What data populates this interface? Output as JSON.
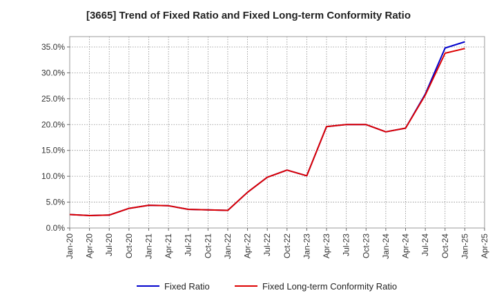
{
  "chart_data": {
    "type": "line",
    "title": "[3665]  Trend of Fixed Ratio and Fixed Long-term Conformity Ratio",
    "xlabel": "",
    "ylabel": "",
    "x": [
      "Jan-20",
      "Apr-20",
      "Jul-20",
      "Oct-20",
      "Jan-21",
      "Apr-21",
      "Jul-21",
      "Oct-21",
      "Jan-22",
      "Apr-22",
      "Jul-22",
      "Oct-22",
      "Jan-23",
      "Apr-23",
      "Jul-23",
      "Oct-23",
      "Jan-24",
      "Apr-24",
      "Jul-24",
      "Oct-24",
      "Jan-25"
    ],
    "x_ticks": [
      "Jan-20",
      "Apr-20",
      "Jul-20",
      "Oct-20",
      "Jan-21",
      "Apr-21",
      "Jul-21",
      "Oct-21",
      "Jan-22",
      "Apr-22",
      "Jul-22",
      "Oct-22",
      "Jan-23",
      "Apr-23",
      "Jul-23",
      "Oct-23",
      "Jan-24",
      "Apr-24",
      "Jul-24",
      "Oct-24",
      "Jan-25",
      "Apr-25"
    ],
    "y_ticks": [
      "0.0%",
      "5.0%",
      "10.0%",
      "15.0%",
      "20.0%",
      "25.0%",
      "30.0%",
      "35.0%"
    ],
    "ylim": [
      0,
      37
    ],
    "grid": true,
    "legend_position": "bottom",
    "series": [
      {
        "name": "Fixed Ratio",
        "color": "#0000cc",
        "values": [
          2.6,
          2.4,
          2.5,
          3.8,
          4.4,
          4.3,
          3.6,
          3.5,
          3.4,
          6.9,
          9.8,
          11.2,
          10.1,
          19.6,
          20.0,
          20.0,
          18.6,
          19.3,
          25.9,
          34.8,
          36.0
        ]
      },
      {
        "name": "Fixed Long-term Conformity Ratio",
        "color": "#dd0000",
        "values": [
          2.6,
          2.4,
          2.5,
          3.8,
          4.4,
          4.3,
          3.6,
          3.5,
          3.4,
          6.9,
          9.8,
          11.2,
          10.1,
          19.6,
          20.0,
          20.0,
          18.6,
          19.3,
          25.7,
          33.8,
          34.7
        ]
      }
    ]
  }
}
